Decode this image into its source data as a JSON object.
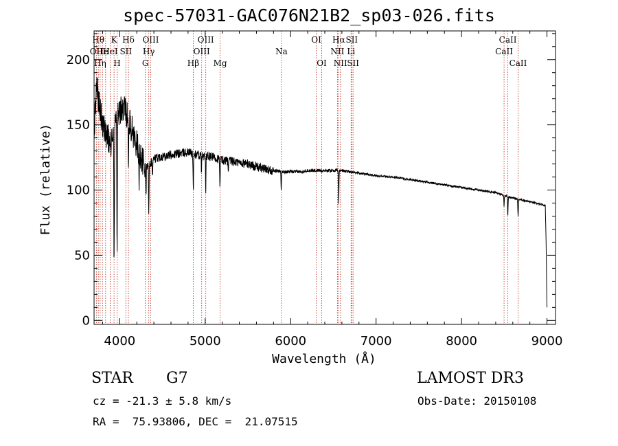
{
  "header": {
    "title": "spec-57031-GAC076N21B2_sp03-026.fits"
  },
  "info": {
    "object_type": "STAR",
    "subclass": "G7",
    "survey": "LAMOST DR3",
    "cz": "cz = -21.3 ± 5.8 km/s",
    "obs_date": "Obs-Date: 20150108",
    "radec": "RA =  75.93806, DEC =  21.07515"
  },
  "colors": {
    "spectrum": "#000000",
    "line_marker": "#c0392b",
    "axis": "#000000"
  },
  "chart_data": {
    "type": "line",
    "title": "spec-57031-GAC076N21B2_sp03-026.fits",
    "xlabel": "Wavelength (Å)",
    "ylabel": "Flux (relative)",
    "xlim": [
      3700,
      9100
    ],
    "ylim": [
      -3,
      222
    ],
    "xticks": [
      4000,
      5000,
      6000,
      7000,
      8000,
      9000
    ],
    "xtick_labels": [
      "4000",
      "5000",
      "6000",
      "7000",
      "8000",
      "9000"
    ],
    "yticks": [
      0,
      50,
      100,
      150,
      200
    ],
    "ytick_labels": [
      "0",
      "50",
      "100",
      "150",
      "200"
    ],
    "grid": false,
    "spectrum_continuum": [
      [
        3700,
        145
      ],
      [
        3730,
        180
      ],
      [
        3760,
        165
      ],
      [
        3800,
        150
      ],
      [
        3850,
        142
      ],
      [
        3900,
        135
      ],
      [
        3950,
        150
      ],
      [
        4000,
        160
      ],
      [
        4050,
        165
      ],
      [
        4100,
        155
      ],
      [
        4150,
        145
      ],
      [
        4200,
        135
      ],
      [
        4250,
        125
      ],
      [
        4300,
        118
      ],
      [
        4350,
        120
      ],
      [
        4400,
        124
      ],
      [
        4500,
        126
      ],
      [
        4600,
        127
      ],
      [
        4700,
        128
      ],
      [
        4800,
        129
      ],
      [
        4900,
        127
      ],
      [
        5000,
        126
      ],
      [
        5100,
        125
      ],
      [
        5200,
        123
      ],
      [
        5300,
        122
      ],
      [
        5400,
        121
      ],
      [
        5500,
        120
      ],
      [
        5600,
        118
      ],
      [
        5700,
        116
      ],
      [
        5800,
        115
      ],
      [
        5900,
        114
      ],
      [
        6000,
        114
      ],
      [
        6100,
        114
      ],
      [
        6200,
        115
      ],
      [
        6300,
        115
      ],
      [
        6400,
        115
      ],
      [
        6500,
        115
      ],
      [
        6600,
        115
      ],
      [
        6700,
        114
      ],
      [
        6800,
        113
      ],
      [
        6900,
        112
      ],
      [
        7000,
        111
      ],
      [
        7200,
        110
      ],
      [
        7400,
        108
      ],
      [
        7600,
        106
      ],
      [
        7800,
        104
      ],
      [
        8000,
        102
      ],
      [
        8200,
        100
      ],
      [
        8400,
        98
      ],
      [
        8600,
        94
      ],
      [
        8800,
        91
      ],
      [
        8980,
        88
      ],
      [
        8990,
        60
      ],
      [
        9000,
        10
      ]
    ],
    "absorption_dips": [
      [
        3934,
        45
      ],
      [
        3969,
        55
      ],
      [
        4102,
        110
      ],
      [
        4227,
        100
      ],
      [
        4308,
        95
      ],
      [
        4340,
        85
      ],
      [
        4383,
        110
      ],
      [
        4861,
        100
      ],
      [
        4957,
        115
      ],
      [
        5007,
        100
      ],
      [
        5173,
        100
      ],
      [
        5270,
        112
      ],
      [
        5890,
        100
      ],
      [
        6563,
        90
      ],
      [
        8498,
        88
      ],
      [
        8542,
        80
      ],
      [
        8662,
        80
      ]
    ],
    "line_markers": [
      {
        "wavelength": 3727,
        "label": "OII",
        "row": 1
      },
      {
        "wavelength": 3750,
        "label": "Hθ",
        "row": 0
      },
      {
        "wavelength": 3771,
        "label": "Hη",
        "row": 2
      },
      {
        "wavelength": 3798,
        "label": "He",
        "row": 1
      },
      {
        "wavelength": 3835,
        "label": "",
        "row": 0
      },
      {
        "wavelength": 3889,
        "label": "HeI",
        "row": 1
      },
      {
        "wavelength": 3934,
        "label": "K",
        "row": 0
      },
      {
        "wavelength": 3969,
        "label": "H",
        "row": 2
      },
      {
        "wavelength": 4072,
        "label": "SII",
        "row": 1
      },
      {
        "wavelength": 4102,
        "label": "Hδ",
        "row": 0
      },
      {
        "wavelength": 4300,
        "label": "G",
        "row": 2
      },
      {
        "wavelength": 4340,
        "label": "Hγ",
        "row": 1
      },
      {
        "wavelength": 4363,
        "label": "OIII",
        "row": 0
      },
      {
        "wavelength": 4861,
        "label": "Hβ",
        "row": 2
      },
      {
        "wavelength": 4959,
        "label": "OIII",
        "row": 1
      },
      {
        "wavelength": 5007,
        "label": "OIII",
        "row": 0
      },
      {
        "wavelength": 5175,
        "label": "Mg",
        "row": 2
      },
      {
        "wavelength": 5893,
        "label": "Na",
        "row": 1
      },
      {
        "wavelength": 6300,
        "label": "OI",
        "row": 0
      },
      {
        "wavelength": 6364,
        "label": "OI",
        "row": 2
      },
      {
        "wavelength": 6548,
        "label": "NII",
        "row": 1
      },
      {
        "wavelength": 6563,
        "label": "Hα",
        "row": 0
      },
      {
        "wavelength": 6583,
        "label": "NII",
        "row": 2
      },
      {
        "wavelength": 6708,
        "label": "Li",
        "row": 1
      },
      {
        "wavelength": 6716,
        "label": "SII",
        "row": 0
      },
      {
        "wavelength": 6731,
        "label": "SII",
        "row": 2
      },
      {
        "wavelength": 8498,
        "label": "CaII",
        "row": 1
      },
      {
        "wavelength": 8542,
        "label": "CaII",
        "row": 0
      },
      {
        "wavelength": 8662,
        "label": "CaII",
        "row": 2
      }
    ]
  }
}
